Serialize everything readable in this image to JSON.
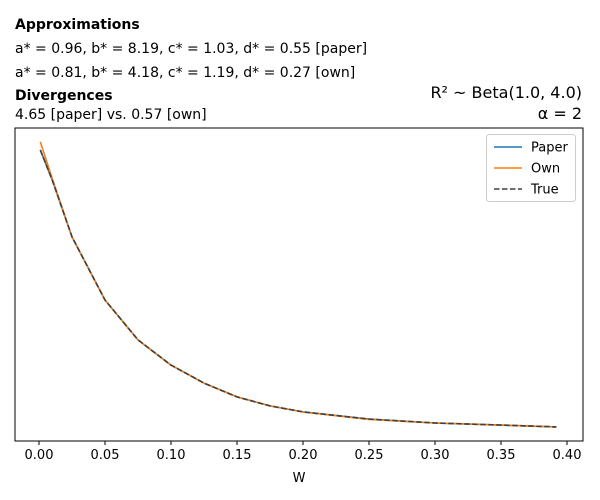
{
  "header": {
    "approx_heading": "Approximations",
    "approx_paper": "a* = 0.96, b* = 8.19, c* = 1.03, d* = 0.55 [paper]",
    "approx_own": "a* = 0.81, b* = 4.18, c* = 1.19, d* = 0.27 [own]",
    "div_heading": "Divergences",
    "div_text": "4.65 [paper] vs. 0.57 [own]",
    "prior": "R² ~  Beta(1.0, 4.0)",
    "alpha": "α = 2"
  },
  "chart_data": {
    "type": "line",
    "xlabel": "W",
    "ylabel": "",
    "xlim": [
      -0.02,
      0.415
    ],
    "ylim": [
      0.0,
      1.043
    ],
    "xticks": [
      "0.00",
      "0.05",
      "0.10",
      "0.15",
      "0.20",
      "0.25",
      "0.30",
      "0.35",
      "0.40"
    ],
    "yticks": [],
    "grid": false,
    "legend": "top-right",
    "x": [
      0.001,
      0.01,
      0.025,
      0.05,
      0.075,
      0.1,
      0.125,
      0.15,
      0.175,
      0.2,
      0.25,
      0.3,
      0.35,
      0.392
    ],
    "series": [
      {
        "name": "Paper",
        "color": "#1f77b4",
        "style": "solid",
        "values": [
          0.97,
          0.87,
          0.68,
          0.47,
          0.337,
          0.253,
          0.193,
          0.147,
          0.117,
          0.097,
          0.073,
          0.06,
          0.053,
          0.047
        ]
      },
      {
        "name": "Own",
        "color": "#ff7f0e",
        "style": "solid",
        "values": [
          0.997,
          0.875,
          0.68,
          0.47,
          0.337,
          0.253,
          0.193,
          0.147,
          0.117,
          0.097,
          0.072,
          0.06,
          0.053,
          0.047
        ]
      },
      {
        "name": "True",
        "color": "#404040",
        "style": "dashed",
        "values": [
          0.97,
          0.87,
          0.68,
          0.47,
          0.337,
          0.253,
          0.193,
          0.147,
          0.117,
          0.097,
          0.073,
          0.06,
          0.053,
          0.047
        ]
      }
    ]
  }
}
